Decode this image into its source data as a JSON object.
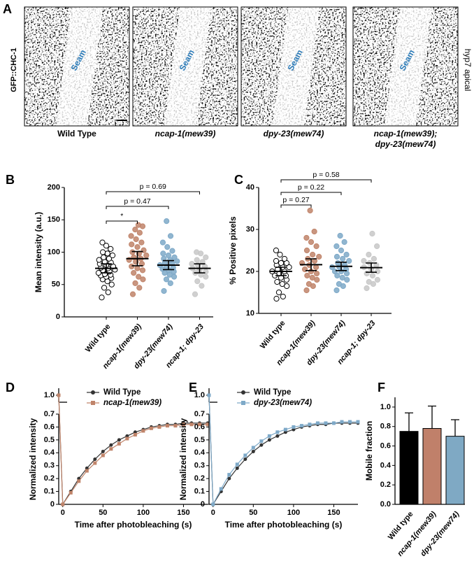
{
  "panel_a": {
    "panel": "A",
    "ylabel": "GFP::CHC-1",
    "side_label": "hyp7 apical",
    "images": [
      {
        "label": [
          "Wild Type"
        ],
        "annotation": "Seam"
      },
      {
        "label": [
          "ncap-1(mew39)"
        ],
        "annotation": "Seam"
      },
      {
        "label": [
          "dpy-23(mew74)"
        ],
        "annotation": "Seam"
      },
      {
        "label": [
          "ncap-1(mew39);",
          "dpy-23(mew74)"
        ],
        "annotation": "Seam"
      }
    ]
  },
  "chart_data": [
    {
      "type": "dotplot",
      "panel": "B",
      "ylabel": "Mean intensity (a.u.)",
      "ylim": [
        0,
        200
      ],
      "yticks": [
        0,
        50,
        100,
        150,
        200
      ],
      "categories": [
        "Wild type",
        "ncap-1(mew39)",
        "dpy-23(mew74)",
        "ncap-1; dpy-23"
      ],
      "groups": [
        {
          "color": "#000000",
          "filled": false,
          "mean": 75,
          "error": 7,
          "values": [
            30,
            38,
            45,
            50,
            55,
            58,
            60,
            62,
            64,
            65,
            66,
            68,
            70,
            72,
            73,
            75,
            76,
            78,
            80,
            82,
            84,
            85,
            88,
            90,
            92,
            95,
            98,
            100,
            105,
            110,
            115
          ]
        },
        {
          "color": "#c0846a",
          "filled": true,
          "mean": 90,
          "error": 11,
          "values": [
            35,
            45,
            52,
            58,
            62,
            68,
            72,
            75,
            78,
            82,
            85,
            88,
            90,
            92,
            95,
            98,
            100,
            103,
            108,
            112,
            115,
            120,
            125,
            130,
            135,
            140,
            142
          ]
        },
        {
          "color": "#7ea9c8",
          "filled": true,
          "mean": 80,
          "error": 7,
          "values": [
            40,
            52,
            58,
            62,
            65,
            68,
            70,
            72,
            74,
            76,
            78,
            80,
            82,
            84,
            86,
            88,
            90,
            92,
            95,
            98,
            102,
            108,
            115,
            125,
            148
          ]
        },
        {
          "color": "#c8c8c8",
          "filled": true,
          "mean": 75,
          "error": 7,
          "values": [
            35,
            48,
            55,
            62,
            65,
            68,
            70,
            72,
            75,
            78,
            80,
            82,
            85,
            88,
            92,
            98,
            100
          ]
        }
      ],
      "annotations": [
        {
          "text": "*",
          "between": [
            0,
            1
          ]
        },
        {
          "text": "p = 0.47",
          "between": [
            0,
            2
          ]
        },
        {
          "text": "p = 0.69",
          "between": [
            0,
            3
          ]
        }
      ]
    },
    {
      "type": "dotplot",
      "panel": "C",
      "ylabel": "% Positive pixels",
      "ylim": [
        10,
        40
      ],
      "yticks": [
        10,
        20,
        30,
        40
      ],
      "categories": [
        "Wild type",
        "ncap-1(mew39)",
        "dpy-23(mew74)",
        "ncap-1; dpy-23"
      ],
      "groups": [
        {
          "color": "#000000",
          "filled": false,
          "mean": 20,
          "error": 1,
          "values": [
            13.5,
            14,
            15,
            16.5,
            17,
            17.5,
            18,
            18.5,
            19,
            19,
            19.5,
            20,
            20,
            20.5,
            21,
            21,
            21.5,
            22,
            22,
            22.5,
            23,
            24,
            25
          ]
        },
        {
          "color": "#c0846a",
          "filled": true,
          "mean": 21.6,
          "error": 1.4,
          "values": [
            15.5,
            16.5,
            17,
            18,
            18.5,
            19,
            19.5,
            20,
            20.5,
            21,
            21.5,
            22,
            22.5,
            23,
            23.5,
            24,
            25,
            26,
            27,
            28,
            29.5,
            34.5
          ]
        },
        {
          "color": "#7ea9c8",
          "filled": true,
          "mean": 21.2,
          "error": 1,
          "values": [
            15.5,
            16.5,
            17,
            18,
            18.5,
            19,
            19.5,
            20,
            20,
            20.5,
            21,
            21,
            21.5,
            22,
            22.5,
            23,
            23.5,
            24,
            25,
            26,
            27,
            28.5
          ]
        },
        {
          "color": "#c8c8c8",
          "filled": true,
          "mean": 20.9,
          "error": 1.1,
          "values": [
            16,
            17,
            17.5,
            18,
            19,
            19.5,
            20,
            20.5,
            21,
            21.5,
            22,
            22.5,
            23,
            24,
            26,
            29
          ]
        }
      ],
      "annotations": [
        {
          "text": "p = 0.27",
          "between": [
            0,
            1
          ]
        },
        {
          "text": "p = 0.22",
          "between": [
            0,
            2
          ]
        },
        {
          "text": "p = 0.58",
          "between": [
            0,
            3
          ]
        }
      ]
    },
    {
      "type": "line",
      "panel": "D",
      "ylabel": "Normalized intensity",
      "xlabel": "Time after photobleaching (s)",
      "xlim": [
        -5,
        180
      ],
      "xticks": [
        0,
        50,
        100,
        150
      ],
      "ylim": [
        0,
        0.7
      ],
      "yticks": [
        0,
        0.1,
        0.2,
        0.3,
        0.4,
        0.5,
        0.6,
        0.7
      ],
      "break_ylim": [
        0.95,
        1.05
      ],
      "break_yticks": [
        {
          "value": 1,
          "label": "1.0"
        }
      ],
      "x": [
        -5,
        0,
        10,
        20,
        30,
        40,
        50,
        60,
        70,
        80,
        90,
        100,
        110,
        120,
        130,
        140,
        150,
        160,
        170,
        180
      ],
      "series": [
        {
          "name": "Wild Type",
          "color": "#333333",
          "values": [
            1.0,
            0,
            0.1,
            0.2,
            0.28,
            0.35,
            0.41,
            0.46,
            0.5,
            0.53,
            0.56,
            0.58,
            0.6,
            0.61,
            0.62,
            0.62,
            0.63,
            0.63,
            0.63,
            0.63
          ]
        },
        {
          "name": "ncap-1(mew39)",
          "color": "#c0846a",
          "values": [
            1.0,
            0,
            0.09,
            0.18,
            0.26,
            0.32,
            0.38,
            0.43,
            0.47,
            0.51,
            0.54,
            0.57,
            0.59,
            0.6,
            0.61,
            0.61,
            0.62,
            0.62,
            0.62,
            0.62
          ]
        }
      ]
    },
    {
      "type": "line",
      "panel": "E",
      "ylabel": "Normalized intensity",
      "xlabel": "Time after photobleaching (s)",
      "xlim": [
        -5,
        180
      ],
      "xticks": [
        0,
        50,
        100,
        150
      ],
      "ylim": [
        0,
        0.7
      ],
      "yticks": [
        0,
        0.1,
        0.2,
        0.3,
        0.4,
        0.5,
        0.6,
        0.7
      ],
      "break_ylim": [
        0.95,
        1.05
      ],
      "break_yticks": [
        {
          "value": 1,
          "label": "1.0"
        }
      ],
      "x": [
        -5,
        0,
        10,
        20,
        30,
        40,
        50,
        60,
        70,
        80,
        90,
        100,
        110,
        120,
        130,
        140,
        150,
        160,
        170,
        180
      ],
      "series": [
        {
          "name": "Wild Type",
          "color": "#333333",
          "values": [
            1.0,
            0,
            0.1,
            0.2,
            0.28,
            0.35,
            0.41,
            0.46,
            0.5,
            0.53,
            0.56,
            0.58,
            0.6,
            0.61,
            0.62,
            0.62,
            0.63,
            0.63,
            0.63,
            0.63
          ]
        },
        {
          "name": "dpy-23(mew74)",
          "color": "#7ea9c8",
          "values": [
            1.0,
            0,
            0.12,
            0.23,
            0.31,
            0.38,
            0.44,
            0.49,
            0.53,
            0.56,
            0.58,
            0.6,
            0.61,
            0.62,
            0.63,
            0.63,
            0.63,
            0.64,
            0.64,
            0.64
          ]
        }
      ]
    },
    {
      "type": "bar",
      "panel": "F",
      "ylabel": "Mobile fraction",
      "ylim": [
        0,
        1.1
      ],
      "yticks": [
        {
          "value": 0,
          "label": "0.0"
        },
        0.2,
        0.4,
        0.6,
        0.8,
        {
          "value": 1,
          "label": "1.0"
        }
      ],
      "categories": [
        "Wild type",
        "ncap-1(mew39)",
        "dpy-23(mew74)"
      ],
      "values": [
        0.75,
        0.78,
        0.7
      ],
      "errors": [
        0.19,
        0.23,
        0.17
      ],
      "colors": [
        "#000000",
        "#c0806a",
        "#7fa9c4"
      ]
    }
  ]
}
